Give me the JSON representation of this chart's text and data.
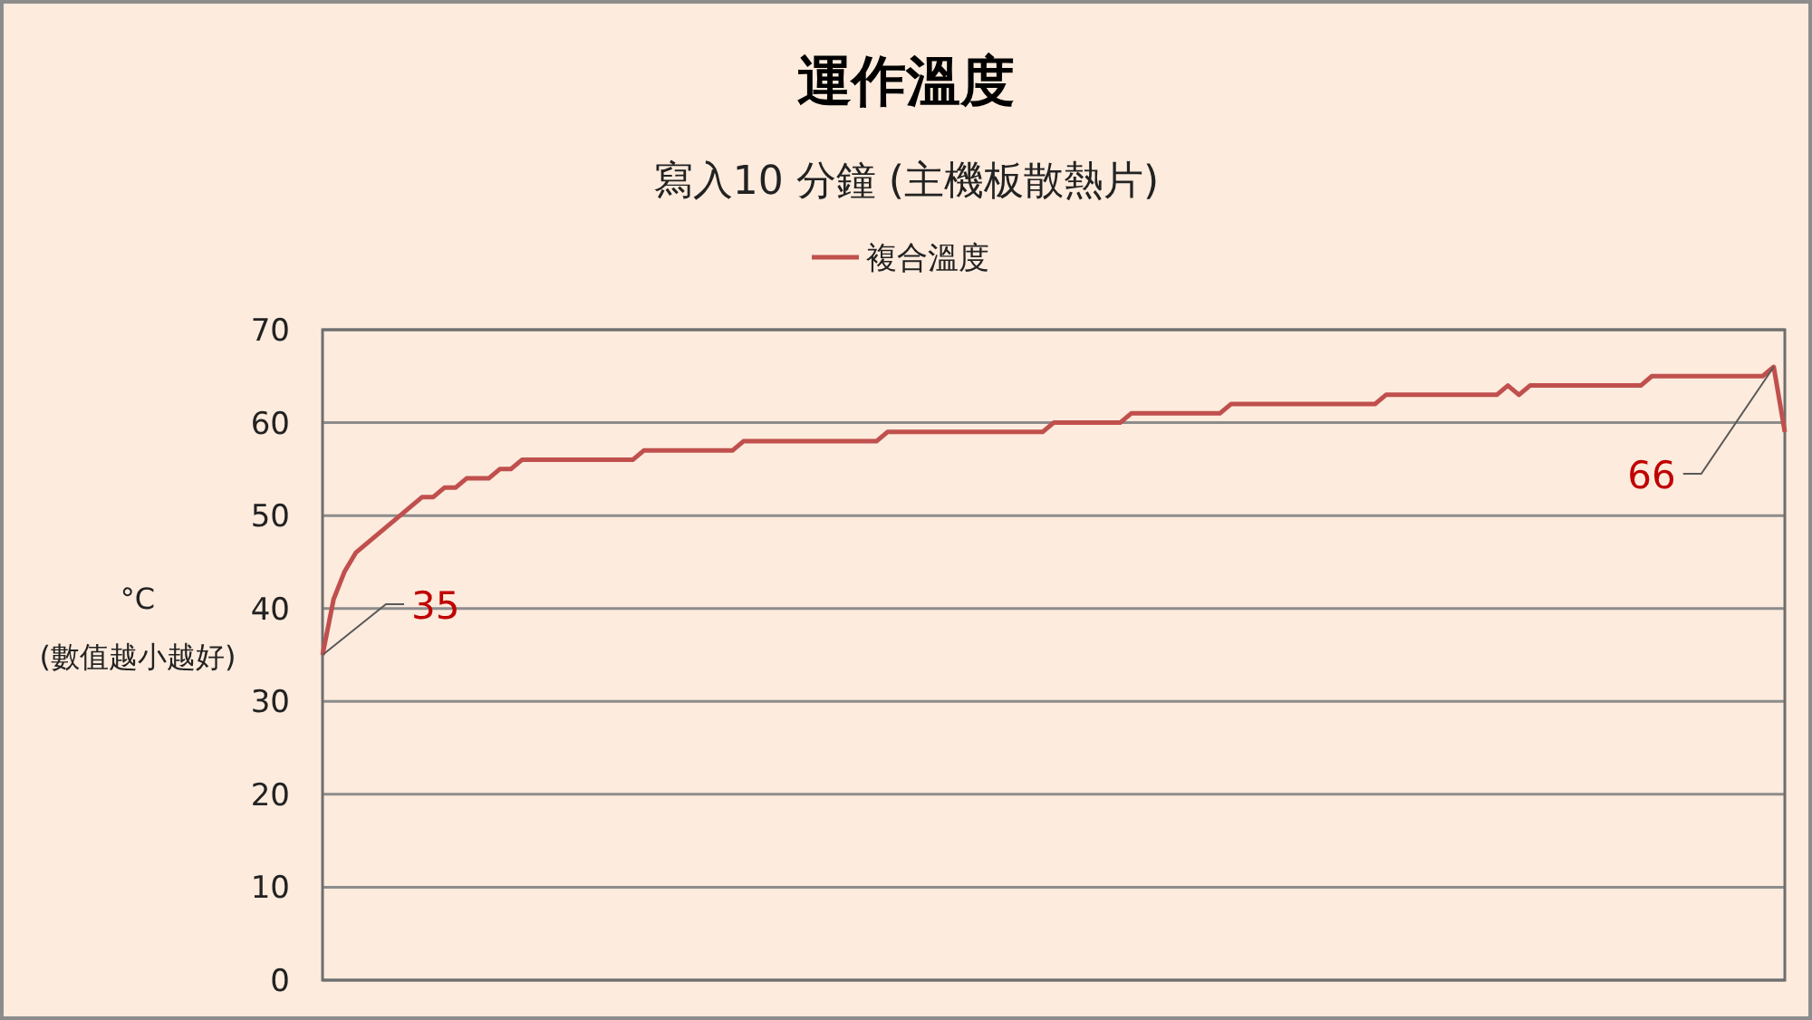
{
  "chart_data": {
    "type": "line",
    "title": "運作溫度",
    "subtitle": "寫入10 分鐘 (主機板散熱片)",
    "ylabel": "°C\n(數值越小越好)",
    "categories": [
      null,
      null,
      null,
      null,
      null,
      null,
      null,
      null,
      null,
      null,
      null,
      null,
      null,
      null,
      null,
      null,
      null,
      null,
      null,
      null,
      null,
      null,
      null,
      null,
      null,
      null,
      null,
      null,
      null,
      null,
      null,
      null,
      null,
      null,
      null,
      null,
      null,
      null,
      null,
      null,
      null,
      null,
      null,
      null,
      null,
      null,
      null,
      null,
      null,
      null,
      null,
      null,
      null,
      null,
      null,
      null,
      null,
      null,
      null,
      null,
      null,
      null,
      null,
      null,
      null,
      null,
      null,
      null,
      null,
      null,
      null,
      null,
      null,
      null,
      null,
      null,
      null,
      null,
      null,
      null,
      null,
      null,
      null,
      null,
      null,
      null,
      null,
      null,
      null,
      null,
      null,
      null,
      null,
      null,
      null,
      null,
      null,
      null,
      null,
      null,
      null,
      null,
      null,
      null,
      null,
      null,
      null,
      null,
      null,
      null,
      null,
      null,
      null,
      null,
      null,
      null,
      null,
      null,
      null,
      null,
      null,
      null,
      null,
      null,
      null,
      null,
      null,
      null,
      null,
      null,
      null,
      null,
      null
    ],
    "series": [
      {
        "name": "複合溫度",
        "color": "#c0504d",
        "values": [
          35,
          41,
          44,
          46,
          47,
          48,
          49,
          50,
          51,
          52,
          52,
          53,
          53,
          54,
          54,
          54,
          55,
          55,
          56,
          56,
          56,
          56,
          56,
          56,
          56,
          56,
          56,
          56,
          56,
          57,
          57,
          57,
          57,
          57,
          57,
          57,
          57,
          57,
          58,
          58,
          58,
          58,
          58,
          58,
          58,
          58,
          58,
          58,
          58,
          58,
          58,
          59,
          59,
          59,
          59,
          59,
          59,
          59,
          59,
          59,
          59,
          59,
          59,
          59,
          59,
          59,
          60,
          60,
          60,
          60,
          60,
          60,
          60,
          61,
          61,
          61,
          61,
          61,
          61,
          61,
          61,
          61,
          62,
          62,
          62,
          62,
          62,
          62,
          62,
          62,
          62,
          62,
          62,
          62,
          62,
          62,
          63,
          63,
          63,
          63,
          63,
          63,
          63,
          63,
          63,
          63,
          63,
          64,
          63,
          64,
          64,
          64,
          64,
          64,
          64,
          64,
          64,
          64,
          64,
          64,
          65,
          65,
          65,
          65,
          65,
          65,
          65,
          65,
          65,
          65,
          65,
          66,
          59
        ]
      }
    ],
    "ylim": [
      0,
      70
    ],
    "yticks": [
      0,
      10,
      20,
      30,
      40,
      50,
      60,
      70
    ],
    "grid": "y",
    "legend": "top",
    "marker": "none",
    "line_style": "solid",
    "annotations": [
      "35",
      {
        "text": "66",
        "y": 66
      }
    ]
  }
}
